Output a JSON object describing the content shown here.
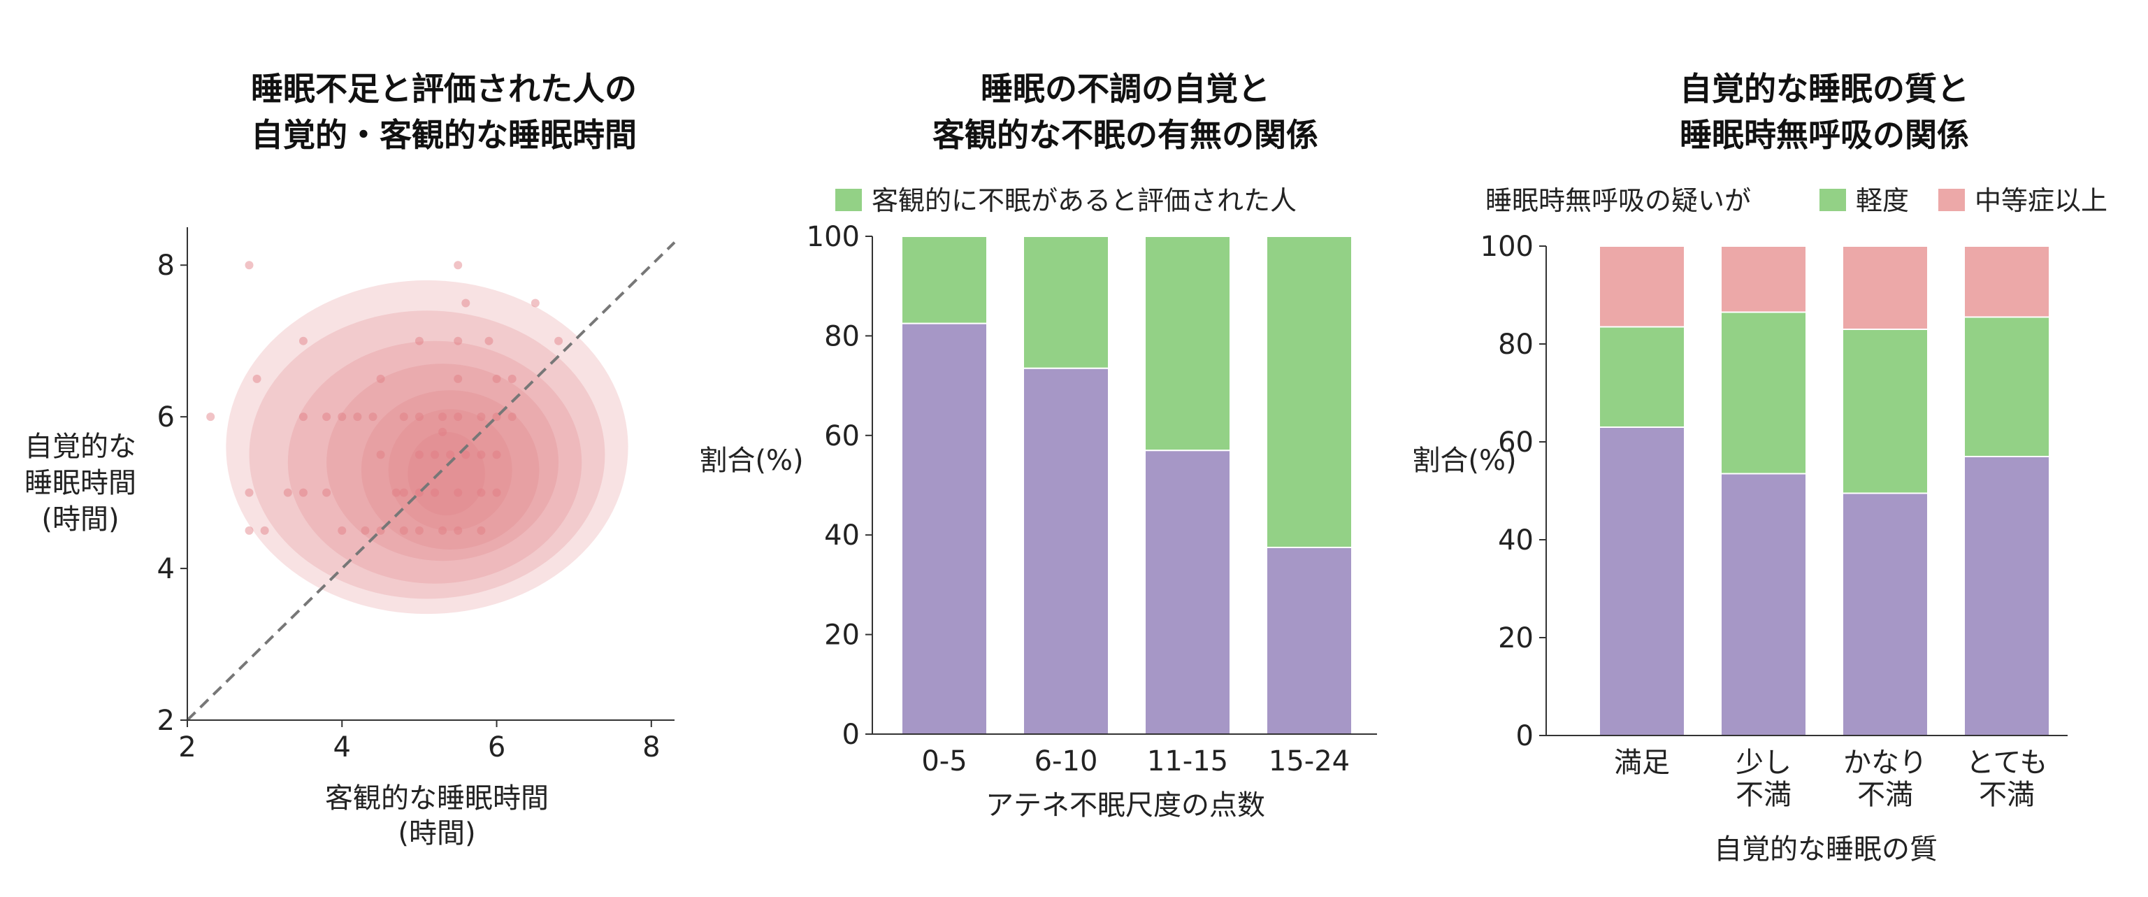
{
  "colors": {
    "purple": "#a697c6",
    "green": "#93d186",
    "pink": "#eca8a8",
    "kde": "#e07a80",
    "diag": "#777777"
  },
  "chart_data": [
    {
      "type": "scatter",
      "title": [
        "睡眠不足と評価された人の",
        "自覚的・客観的な睡眠時間"
      ],
      "xlabel": [
        "客観的な睡眠時間",
        "(時間)"
      ],
      "ylabel": [
        "自覚的な",
        "睡眠時間",
        "(時間)"
      ],
      "xlim": [
        2,
        8.3
      ],
      "ylim": [
        2,
        8.5
      ],
      "xticks": [
        "2",
        "4",
        "6",
        "8"
      ],
      "yticks": [
        "2",
        "4",
        "6",
        "8"
      ],
      "diagonal": true,
      "density": [
        {
          "cx": 5.1,
          "cy": 5.6,
          "rx": 2.6,
          "ry": 2.2
        },
        {
          "cx": 5.1,
          "cy": 5.5,
          "rx": 2.3,
          "ry": 1.9
        },
        {
          "cx": 5.2,
          "cy": 5.4,
          "rx": 1.9,
          "ry": 1.6
        },
        {
          "cx": 5.3,
          "cy": 5.4,
          "rx": 1.5,
          "ry": 1.3
        },
        {
          "cx": 5.4,
          "cy": 5.3,
          "rx": 1.15,
          "ry": 1.05
        },
        {
          "cx": 5.4,
          "cy": 5.3,
          "rx": 0.8,
          "ry": 0.8
        },
        {
          "cx": 5.35,
          "cy": 5.25,
          "rx": 0.5,
          "ry": 0.55
        }
      ],
      "points": [
        {
          "x": 2.8,
          "y": 8.0
        },
        {
          "x": 2.3,
          "y": 6.0
        },
        {
          "x": 2.9,
          "y": 6.5
        },
        {
          "x": 3.5,
          "y": 7.0
        },
        {
          "x": 2.8,
          "y": 5.0
        },
        {
          "x": 2.8,
          "y": 4.5
        },
        {
          "x": 3.0,
          "y": 4.5
        },
        {
          "x": 3.3,
          "y": 5.0
        },
        {
          "x": 3.5,
          "y": 5.0
        },
        {
          "x": 3.8,
          "y": 5.0
        },
        {
          "x": 3.5,
          "y": 6.0
        },
        {
          "x": 3.8,
          "y": 6.0
        },
        {
          "x": 4.0,
          "y": 6.0
        },
        {
          "x": 4.2,
          "y": 6.0
        },
        {
          "x": 4.4,
          "y": 6.0
        },
        {
          "x": 4.8,
          "y": 6.0
        },
        {
          "x": 5.0,
          "y": 6.0
        },
        {
          "x": 5.3,
          "y": 6.0
        },
        {
          "x": 5.5,
          "y": 6.0
        },
        {
          "x": 5.8,
          "y": 6.0
        },
        {
          "x": 6.0,
          "y": 6.0
        },
        {
          "x": 6.2,
          "y": 6.0
        },
        {
          "x": 4.0,
          "y": 4.5
        },
        {
          "x": 4.3,
          "y": 4.5
        },
        {
          "x": 4.5,
          "y": 4.5
        },
        {
          "x": 4.8,
          "y": 4.5
        },
        {
          "x": 5.0,
          "y": 4.5
        },
        {
          "x": 5.3,
          "y": 4.5
        },
        {
          "x": 5.5,
          "y": 4.5
        },
        {
          "x": 5.8,
          "y": 4.5
        },
        {
          "x": 4.8,
          "y": 5.0
        },
        {
          "x": 5.0,
          "y": 5.0
        },
        {
          "x": 5.2,
          "y": 5.0
        },
        {
          "x": 5.5,
          "y": 5.0
        },
        {
          "x": 5.8,
          "y": 5.0
        },
        {
          "x": 6.0,
          "y": 5.0
        },
        {
          "x": 5.0,
          "y": 5.5
        },
        {
          "x": 5.2,
          "y": 5.5
        },
        {
          "x": 5.4,
          "y": 5.5
        },
        {
          "x": 5.6,
          "y": 5.5
        },
        {
          "x": 5.8,
          "y": 5.5
        },
        {
          "x": 6.0,
          "y": 5.5
        },
        {
          "x": 5.5,
          "y": 6.5
        },
        {
          "x": 6.0,
          "y": 6.5
        },
        {
          "x": 5.0,
          "y": 7.0
        },
        {
          "x": 5.5,
          "y": 7.0
        },
        {
          "x": 5.9,
          "y": 7.0
        },
        {
          "x": 5.6,
          "y": 7.5
        },
        {
          "x": 6.5,
          "y": 7.5
        },
        {
          "x": 5.5,
          "y": 8.0
        },
        {
          "x": 6.2,
          "y": 6.5
        },
        {
          "x": 6.8,
          "y": 7.0
        },
        {
          "x": 4.5,
          "y": 5.5
        },
        {
          "x": 4.7,
          "y": 5.0
        },
        {
          "x": 5.3,
          "y": 5.8
        },
        {
          "x": 4.5,
          "y": 6.5
        }
      ]
    },
    {
      "type": "bar",
      "stacked": true,
      "title": [
        "睡眠の不調の自覚と",
        "客観的な不眠の有無の関係"
      ],
      "xlabel": "アテネ不眠尺度の点数",
      "ylabel": "割合(%)",
      "ylim": [
        0,
        100
      ],
      "yticks": [
        "0",
        "20",
        "40",
        "60",
        "80",
        "100"
      ],
      "categories": [
        "0-5",
        "6-10",
        "11-15",
        "15-24"
      ],
      "series": [
        {
          "color": "purple",
          "values": [
            82.5,
            73.5,
            57,
            37.5
          ]
        },
        {
          "name": "客観的に不眠があると評価された人",
          "color": "green",
          "values": [
            17.5,
            26.5,
            43,
            62.5
          ]
        }
      ],
      "legend": {
        "prefix": "",
        "entries": [
          "客観的に不眠があると評価された人"
        ]
      }
    },
    {
      "type": "bar",
      "stacked": true,
      "title": [
        "自覚的な睡眠の質と",
        "睡眠時無呼吸の関係"
      ],
      "xlabel": "自覚的な睡眠の質",
      "ylabel": "割合(%)",
      "ylim": [
        0,
        100
      ],
      "yticks": [
        "0",
        "20",
        "40",
        "60",
        "80",
        "100"
      ],
      "categories": [
        [
          "満足"
        ],
        [
          "少し",
          "不満"
        ],
        [
          "かなり",
          "不満"
        ],
        [
          "とても",
          "不満"
        ]
      ],
      "series": [
        {
          "color": "purple",
          "values": [
            63,
            53.5,
            49.5,
            57
          ]
        },
        {
          "name": "軽度",
          "color": "green",
          "values": [
            20.5,
            33,
            33.5,
            28.5
          ]
        },
        {
          "name": "中等症以上",
          "color": "pink",
          "values": [
            16.5,
            13.5,
            17,
            14.5
          ]
        }
      ],
      "legend": {
        "prefix": "睡眠時無呼吸の疑いが",
        "entries": [
          "軽度",
          "中等症以上"
        ]
      }
    }
  ]
}
